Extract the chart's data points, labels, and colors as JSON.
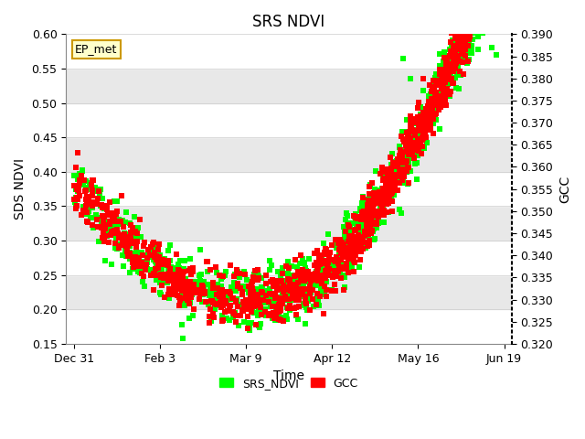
{
  "title": "SRS NDVI",
  "xlabel": "Time",
  "ylabel_left": "SDS NDVI",
  "ylabel_right": "GCC",
  "ylim_left": [
    0.15,
    0.6
  ],
  "ylim_right": [
    0.32,
    0.39
  ],
  "yticks_left": [
    0.15,
    0.2,
    0.25,
    0.3,
    0.35,
    0.4,
    0.45,
    0.5,
    0.55,
    0.6
  ],
  "yticks_right": [
    0.32,
    0.325,
    0.33,
    0.335,
    0.34,
    0.345,
    0.35,
    0.355,
    0.36,
    0.365,
    0.37,
    0.375,
    0.38,
    0.385,
    0.39
  ],
  "xtick_labels": [
    "Dec 31",
    "Feb 3",
    "Mar 9",
    "Apr 12",
    "May 16",
    "Jun 19"
  ],
  "xtick_positions": [
    0,
    34,
    68,
    102,
    136,
    170
  ],
  "ep_met_label": "EP_met",
  "legend_entries": [
    "SRS_NDVI",
    "GCC"
  ],
  "legend_colors": [
    "#00ff00",
    "#ff0000"
  ],
  "marker_size": 4,
  "background_color": "#ffffff",
  "band_colors": [
    "#ffffff",
    "#e8e8e8"
  ],
  "band_edges_left": [
    0.15,
    0.2,
    0.25,
    0.3,
    0.35,
    0.4,
    0.45,
    0.5,
    0.55,
    0.6
  ],
  "title_fontsize": 12,
  "axis_label_fontsize": 10
}
